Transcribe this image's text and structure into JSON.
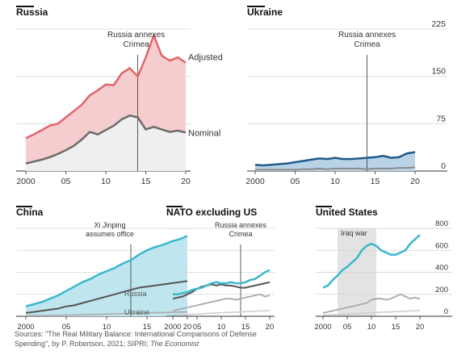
{
  "source": {
    "prefix": "Sources: \"The Real Military Balance: International Comparisons of Defense Spending\", by P. Robertson, 2021; SIPRI; ",
    "publication": "The Economist"
  },
  "chart_data": [
    {
      "panel": "russia",
      "type": "area",
      "title": "Russia",
      "x": [
        2000,
        2001,
        2002,
        2003,
        2004,
        2005,
        2006,
        2007,
        2008,
        2009,
        2010,
        2011,
        2012,
        2013,
        2014,
        2015,
        2016,
        2017,
        2018,
        2019,
        2020
      ],
      "series": [
        {
          "name": "Adjusted",
          "values": [
            52,
            58,
            65,
            72,
            75,
            85,
            95,
            105,
            120,
            128,
            137,
            136,
            155,
            163,
            150,
            180,
            215,
            183,
            175,
            180,
            172
          ]
        },
        {
          "name": "Nominal",
          "values": [
            12,
            15,
            18,
            22,
            27,
            33,
            40,
            50,
            62,
            58,
            65,
            72,
            82,
            88,
            85,
            66,
            70,
            66,
            62,
            64,
            61
          ]
        }
      ],
      "ylim": [
        0,
        225
      ],
      "yticks": [
        0,
        75,
        150,
        225
      ],
      "xticks": [
        2000,
        2005,
        2010,
        2015,
        2020
      ],
      "xticklabels": [
        "2000",
        "05",
        "10",
        "15",
        "20"
      ],
      "annotation": {
        "x": 2014,
        "text": [
          "Russia annexes",
          "Crimea"
        ]
      },
      "colors": {
        "adjusted": "#e0656a",
        "adjusted_fill": "#f6cdce",
        "nominal": "#6b6b6b"
      }
    },
    {
      "panel": "ukraine",
      "type": "area",
      "title": "Ukraine",
      "x": [
        2000,
        2001,
        2002,
        2003,
        2004,
        2005,
        2006,
        2007,
        2008,
        2009,
        2010,
        2011,
        2012,
        2013,
        2014,
        2015,
        2016,
        2017,
        2018,
        2019,
        2020
      ],
      "series": [
        {
          "values": [
            10,
            9,
            10,
            11,
            12,
            14,
            16,
            18,
            20,
            19,
            21,
            19,
            19,
            20,
            21,
            22,
            24,
            21,
            22,
            28,
            30
          ]
        },
        {
          "values": [
            2,
            2,
            2,
            2,
            2,
            2,
            3,
            3,
            4,
            3,
            4,
            4,
            4,
            4,
            3,
            4,
            4,
            4,
            5,
            5,
            6
          ]
        }
      ],
      "ylim": [
        0,
        225
      ],
      "yticks": [
        0,
        75,
        150,
        225
      ],
      "xticks": [
        2000,
        2005,
        2010,
        2015,
        2020
      ],
      "xticklabels": [
        "2000",
        "05",
        "10",
        "15",
        "20"
      ],
      "annotation": {
        "x": 2014,
        "text": [
          "Russia annexes",
          "Crimea"
        ]
      },
      "colors": {
        "line": "#1e5b8a",
        "fill": "#b9d3e6",
        "nominal": "#8a8a8a"
      }
    },
    {
      "panel": "china",
      "type": "area",
      "title": "China",
      "x": [
        2000,
        2001,
        2002,
        2003,
        2004,
        2005,
        2006,
        2007,
        2008,
        2009,
        2010,
        2011,
        2012,
        2013,
        2014,
        2015,
        2016,
        2017,
        2018,
        2019,
        2020
      ],
      "series": [
        {
          "values": [
            90,
            110,
            130,
            160,
            190,
            230,
            270,
            310,
            340,
            380,
            410,
            440,
            480,
            510,
            560,
            600,
            630,
            650,
            680,
            700,
            730
          ]
        },
        {
          "name": "Russia",
          "values": [
            30,
            40,
            50,
            60,
            70,
            90,
            100,
            120,
            140,
            160,
            180,
            200,
            220,
            240,
            260,
            270,
            280,
            290,
            300,
            310,
            320
          ]
        },
        {
          "name": "Ukraine",
          "values": [
            5,
            6,
            7,
            8,
            9,
            10,
            12,
            14,
            16,
            18,
            20,
            22,
            24,
            26,
            28,
            30,
            32,
            34,
            36,
            38,
            40
          ]
        }
      ],
      "ylim": [
        0,
        800
      ],
      "xticks": [
        2000,
        2005,
        2010,
        2015,
        2020
      ],
      "xticklabels": [
        "2000",
        "05",
        "10",
        "15",
        "20"
      ],
      "annotation": {
        "x": 2013,
        "text": [
          "Xi Jinping",
          "assumes office"
        ]
      },
      "colors": {
        "line": "#3bb8cc",
        "fill": "#bfe6ee",
        "russia": "#555555",
        "ukraine": "#aaaaaa"
      }
    },
    {
      "panel": "nato",
      "type": "line",
      "title": "NATO excluding US",
      "x": [
        2000,
        2001,
        2002,
        2003,
        2004,
        2005,
        2006,
        2007,
        2008,
        2009,
        2010,
        2011,
        2012,
        2013,
        2014,
        2015,
        2016,
        2017,
        2018,
        2019,
        2020
      ],
      "series": [
        {
          "values": [
            200,
            200,
            210,
            220,
            240,
            250,
            260,
            280,
            300,
            310,
            300,
            300,
            310,
            300,
            300,
            310,
            330,
            340,
            370,
            400,
            420
          ]
        },
        {
          "values": [
            160,
            170,
            180,
            200,
            220,
            250,
            270,
            280,
            290,
            280,
            290,
            280,
            280,
            270,
            260,
            260,
            270,
            280,
            290,
            300,
            310
          ]
        },
        {
          "values": [
            50,
            60,
            70,
            80,
            90,
            100,
            110,
            120,
            130,
            140,
            150,
            160,
            160,
            150,
            160,
            170,
            180,
            190,
            200,
            180,
            190
          ]
        },
        {
          "values": [
            10,
            12,
            14,
            16,
            18,
            20,
            22,
            25,
            28,
            30,
            32,
            34,
            36,
            38,
            40,
            42,
            44,
            46,
            48,
            50,
            52
          ]
        }
      ],
      "ylim": [
        0,
        800
      ],
      "xticks": [
        2000,
        2005,
        2010,
        2015,
        2020
      ],
      "xticklabels": [
        "2000",
        "05",
        "10",
        "15",
        "20"
      ],
      "annotation": {
        "x": 2014,
        "text": [
          "Russia annexes",
          "Crimea"
        ]
      },
      "colors": {
        "line": "#3bb8cc",
        "russia": "#555555",
        "china": "#aaaaaa",
        "ukraine": "#cfcfcf"
      }
    },
    {
      "panel": "us",
      "type": "line",
      "title": "United States",
      "x": [
        2000,
        2001,
        2002,
        2003,
        2004,
        2005,
        2006,
        2007,
        2008,
        2009,
        2010,
        2011,
        2012,
        2013,
        2014,
        2015,
        2016,
        2017,
        2018,
        2019,
        2020
      ],
      "series": [
        {
          "values": [
            260,
            280,
            330,
            370,
            420,
            450,
            490,
            530,
            600,
            640,
            660,
            640,
            600,
            580,
            560,
            560,
            580,
            600,
            660,
            700,
            740
          ]
        },
        {
          "values": [
            30,
            40,
            50,
            60,
            70,
            80,
            90,
            100,
            110,
            120,
            150,
            160,
            160,
            150,
            160,
            180,
            200,
            180,
            160,
            170,
            160
          ]
        },
        {
          "values": [
            10,
            12,
            14,
            16,
            18,
            20,
            22,
            25,
            28,
            30,
            32,
            34,
            36,
            38,
            40,
            42,
            44,
            46,
            48,
            50,
            52
          ]
        }
      ],
      "ylim": [
        0,
        800
      ],
      "yticks": [
        0,
        200,
        400,
        600,
        800
      ],
      "xticks": [
        2000,
        2005,
        2010,
        2015,
        2020
      ],
      "xticklabels": [
        "2000",
        "05",
        "10",
        "15",
        "20"
      ],
      "annotation": {
        "x_range": [
          2003,
          2011
        ],
        "text": [
          "Iraq war"
        ]
      },
      "colors": {
        "line": "#3bb8cc",
        "china": "#aaaaaa",
        "ukraine": "#cfcfcf",
        "shade": "#e3e3e3"
      }
    }
  ]
}
